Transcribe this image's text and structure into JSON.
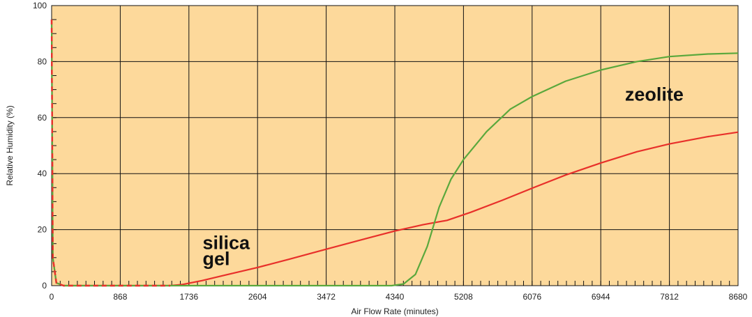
{
  "chart_data": {
    "type": "line",
    "title": "",
    "xlabel": "Air Flow Rate (minutes)",
    "ylabel": "Relative Humidity (%)",
    "xlim": [
      0,
      8680
    ],
    "ylim": [
      0,
      100
    ],
    "x_ticks": [
      "0",
      "868",
      "1736",
      "2604",
      "3472",
      "4340",
      "5208",
      "6076",
      "6944",
      "7812",
      "8680"
    ],
    "y_ticks": [
      "0",
      "20",
      "40",
      "60",
      "80",
      "100"
    ],
    "grid": true,
    "background": "#fdd99b",
    "series": [
      {
        "color": "#e8302a",
        "points": [
          [
            0,
            95
          ],
          [
            15,
            10
          ],
          [
            60,
            1
          ],
          [
            150,
            0
          ],
          [
            1500,
            0
          ],
          [
            1650,
            0.4
          ],
          [
            1900,
            1.8
          ],
          [
            2200,
            3.8
          ],
          [
            2604,
            6.5
          ],
          [
            3000,
            9.4
          ],
          [
            3472,
            13
          ],
          [
            4000,
            17
          ],
          [
            4340,
            19.5
          ],
          [
            4700,
            21.8
          ],
          [
            5000,
            23.3
          ],
          [
            5300,
            26.2
          ],
          [
            5700,
            30.5
          ],
          [
            6076,
            34.8
          ],
          [
            6500,
            39.5
          ],
          [
            6944,
            43.8
          ],
          [
            7400,
            47.8
          ],
          [
            7812,
            50.6
          ],
          [
            8300,
            53.2
          ],
          [
            8680,
            54.8
          ]
        ]
      },
      {
        "color": "#5aa83c",
        "points": [
          [
            0,
            95
          ],
          [
            15,
            10
          ],
          [
            60,
            1
          ],
          [
            150,
            0
          ],
          [
            4300,
            0
          ],
          [
            4450,
            0.6
          ],
          [
            4600,
            4
          ],
          [
            4750,
            14
          ],
          [
            4900,
            28
          ],
          [
            5050,
            38
          ],
          [
            5208,
            45
          ],
          [
            5500,
            55
          ],
          [
            5800,
            63
          ],
          [
            6076,
            67.5
          ],
          [
            6500,
            73
          ],
          [
            6944,
            77
          ],
          [
            7400,
            80
          ],
          [
            7812,
            81.8
          ],
          [
            8300,
            82.7
          ],
          [
            8680,
            83
          ]
        ]
      }
    ],
    "annotations": [
      {
        "text_lines": [
          "silica",
          "gel"
        ],
        "x": 1910,
        "y": 13
      },
      {
        "text_lines": [
          "zeolite"
        ],
        "x": 7250,
        "y": 66
      }
    ]
  }
}
